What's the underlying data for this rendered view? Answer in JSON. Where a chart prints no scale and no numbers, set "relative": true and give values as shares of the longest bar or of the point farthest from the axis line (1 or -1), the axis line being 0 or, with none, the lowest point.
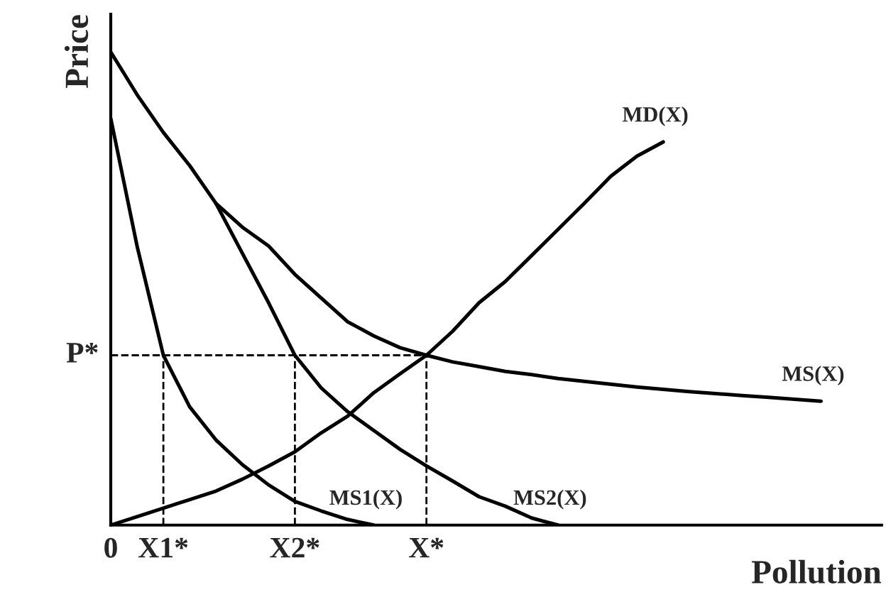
{
  "chart_data": {
    "type": "line",
    "relative": true,
    "xlabel": "Pollution",
    "ylabel": "Price",
    "categories": [
      "0",
      null,
      "X1*",
      null,
      null,
      null,
      null,
      "X2*",
      null,
      null,
      null,
      null,
      "X*",
      null,
      null,
      null,
      null,
      null,
      null,
      null,
      null,
      null,
      null,
      null,
      null,
      null,
      null,
      null,
      null,
      null
    ],
    "series": [
      {
        "name": "MD(X)",
        "color": "#000000",
        "values": [
          0,
          0.018,
          0.036,
          0.054,
          0.072,
          0.097,
          0.125,
          0.155,
          0.195,
          0.23,
          0.28,
          0.32,
          0.359,
          0.41,
          0.47,
          0.515,
          0.57,
          0.625,
          0.68,
          0.737,
          0.78,
          0.81,
          null,
          null,
          null,
          null,
          null,
          null,
          null,
          null
        ]
      },
      {
        "name": "MS1(X)",
        "color": "#000000",
        "values": [
          0.86,
          0.59,
          0.359,
          0.25,
          0.18,
          0.128,
          0.085,
          0.05,
          0.03,
          0.012,
          0,
          null,
          null,
          null,
          null,
          null,
          null,
          null,
          null,
          null,
          null,
          null,
          null,
          null,
          null,
          null,
          null,
          null,
          null,
          null
        ]
      },
      {
        "name": "MS2(X)",
        "color": "#000000",
        "values": [
          1.0,
          0.91,
          0.83,
          0.76,
          0.68,
          0.575,
          0.47,
          0.359,
          0.29,
          0.24,
          0.2,
          0.16,
          0.125,
          0.093,
          0.06,
          0.04,
          0.015,
          0,
          null,
          null,
          null,
          null,
          null,
          null,
          null,
          null,
          null,
          null,
          null,
          null
        ]
      },
      {
        "name": "MS(X)",
        "color": "#000000",
        "values": [
          null,
          null,
          null,
          null,
          0.68,
          0.63,
          0.59,
          0.53,
          0.48,
          0.43,
          0.4,
          0.375,
          0.359,
          0.345,
          0.335,
          0.325,
          0.318,
          0.31,
          0.304,
          0.298,
          0.292,
          0.287,
          0.282,
          0.278,
          0.274,
          0.27,
          0.266,
          0.262,
          null,
          null
        ]
      }
    ],
    "ref_lines": [
      {
        "axis": "y",
        "value": 0.359,
        "label": "P*",
        "line_style": "dashed"
      },
      {
        "axis": "x",
        "value": "X1*",
        "line_style": "dashed"
      },
      {
        "axis": "x",
        "value": "X2*",
        "line_style": "dashed"
      },
      {
        "axis": "x",
        "value": "X*",
        "line_style": "dashed"
      }
    ],
    "legend": false,
    "line_style": "solid",
    "marker": "none"
  }
}
